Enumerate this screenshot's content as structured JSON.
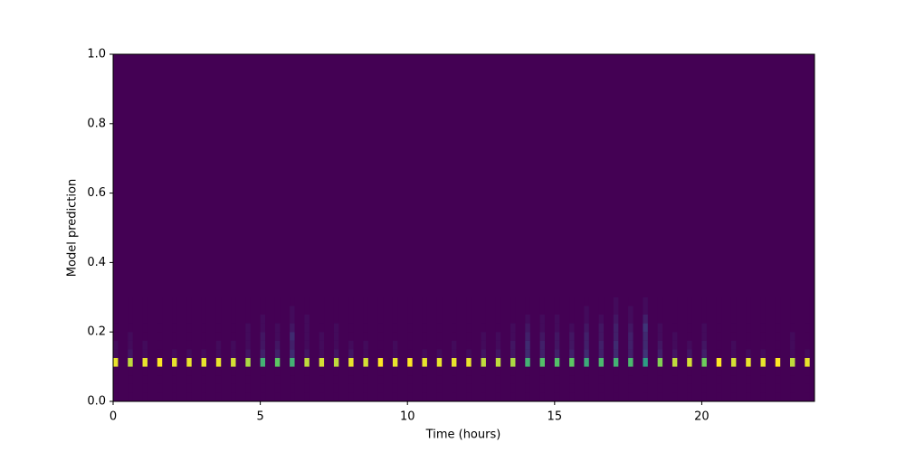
{
  "chart_data": {
    "type": "heatmap",
    "colormap": "viridis",
    "xlabel": "Time (hours)",
    "ylabel": "Model prediction",
    "xlim": [
      0,
      23.83
    ],
    "ylim": [
      0,
      1
    ],
    "xticks": [
      0,
      5,
      10,
      15,
      20
    ],
    "yticks": [
      {
        "value": 0,
        "label": "0.0"
      },
      {
        "value": 0.2,
        "label": "0.2"
      },
      {
        "value": 0.4,
        "label": "0.4"
      },
      {
        "value": 0.6,
        "label": "0.6"
      },
      {
        "value": 0.8,
        "label": "0.8"
      },
      {
        "value": 1,
        "label": "1.0"
      }
    ],
    "bin_width": 0.1667,
    "x": [
      0,
      0.5,
      1,
      1.5,
      2,
      2.5,
      3,
      3.5,
      4,
      4.5,
      5,
      5.5,
      6,
      6.5,
      7,
      7.5,
      8,
      8.5,
      9,
      9.5,
      10,
      10.5,
      11,
      11.5,
      12,
      12.5,
      13,
      13.5,
      14,
      14.5,
      15,
      15.5,
      16,
      16.5,
      17,
      17.5,
      18,
      18.5,
      19,
      19.5,
      20,
      20.5,
      21,
      21.5,
      22,
      22.5,
      23,
      23.5
    ],
    "ybins": [
      0,
      0.025,
      0.05,
      0.075,
      0.1,
      0.125,
      0.15,
      0.175,
      0.2,
      0.225,
      0.25,
      0.275,
      0.3
    ],
    "z": [
      [
        0,
        0,
        0,
        0,
        30,
        1,
        1,
        0,
        0,
        0,
        0,
        0
      ],
      [
        0,
        0,
        0,
        0,
        28,
        2,
        1,
        1,
        0,
        0,
        0,
        0
      ],
      [
        0,
        0,
        0,
        0,
        30,
        1,
        1,
        0,
        0,
        0,
        0,
        0
      ],
      [
        0,
        0,
        0,
        0,
        31,
        0,
        0,
        0,
        0,
        0,
        0,
        0
      ],
      [
        0,
        0,
        0,
        0,
        30,
        1,
        0,
        0,
        0,
        0,
        0,
        0
      ],
      [
        0,
        0,
        0,
        0,
        30,
        1,
        0,
        0,
        0,
        0,
        0,
        0
      ],
      [
        0,
        0,
        0,
        0,
        30,
        1,
        0,
        0,
        0,
        0,
        0,
        0
      ],
      [
        0,
        0,
        0,
        0,
        30,
        1,
        1,
        0,
        0,
        0,
        0,
        0
      ],
      [
        0,
        0,
        0,
        0,
        29,
        1,
        1,
        0,
        0,
        0,
        0,
        0
      ],
      [
        0,
        0,
        0,
        0,
        27,
        2,
        1,
        1,
        1,
        0,
        0,
        0
      ],
      [
        0,
        0,
        0,
        0,
        20,
        3,
        2,
        2,
        1,
        1,
        0,
        0
      ],
      [
        0,
        0,
        0,
        0,
        23,
        3,
        2,
        1,
        1,
        0,
        0,
        0
      ],
      [
        0,
        0,
        0,
        0,
        20,
        4,
        3,
        4,
        2,
        1,
        1,
        0
      ],
      [
        0,
        0,
        0,
        0,
        28,
        2,
        1,
        1,
        1,
        1,
        0,
        0
      ],
      [
        0,
        0,
        0,
        0,
        29,
        1,
        1,
        1,
        0,
        0,
        0,
        0
      ],
      [
        0,
        0,
        0,
        0,
        28,
        2,
        1,
        1,
        1,
        0,
        0,
        0
      ],
      [
        0,
        0,
        0,
        0,
        30,
        2,
        1,
        0,
        0,
        0,
        0,
        0
      ],
      [
        0,
        0,
        0,
        0,
        29,
        1,
        1,
        0,
        0,
        0,
        0,
        0
      ],
      [
        0,
        0,
        0,
        0,
        31,
        0,
        0,
        0,
        0,
        0,
        0,
        0
      ],
      [
        0,
        0,
        0,
        0,
        30,
        1,
        1,
        0,
        0,
        0,
        0,
        0
      ],
      [
        0,
        0,
        0,
        0,
        31,
        0,
        0,
        0,
        0,
        0,
        0,
        0
      ],
      [
        0,
        0,
        0,
        0,
        30,
        1,
        0,
        0,
        0,
        0,
        0,
        0
      ],
      [
        0,
        0,
        0,
        0,
        30,
        1,
        0,
        0,
        0,
        0,
        0,
        0
      ],
      [
        0,
        0,
        0,
        0,
        30,
        1,
        1,
        0,
        0,
        0,
        0,
        0
      ],
      [
        0,
        0,
        0,
        0,
        30,
        1,
        0,
        0,
        0,
        0,
        0,
        0
      ],
      [
        0,
        0,
        0,
        0,
        28,
        2,
        1,
        1,
        0,
        0,
        0,
        0
      ],
      [
        0,
        0,
        0,
        0,
        28,
        2,
        1,
        1,
        0,
        0,
        0,
        0
      ],
      [
        0,
        0,
        0,
        0,
        27,
        2,
        2,
        1,
        1,
        0,
        0,
        0
      ],
      [
        0,
        0,
        0,
        0,
        20,
        4,
        4,
        3,
        2,
        1,
        0,
        0
      ],
      [
        0,
        0,
        0,
        0,
        22,
        3,
        3,
        2,
        1,
        1,
        0,
        0
      ],
      [
        0,
        0,
        0,
        0,
        22,
        3,
        2,
        2,
        1,
        1,
        0,
        0
      ],
      [
        0,
        0,
        0,
        0,
        23,
        3,
        2,
        2,
        1,
        0,
        0,
        0
      ],
      [
        0,
        0,
        0,
        0,
        19,
        4,
        3,
        3,
        2,
        1,
        1,
        0
      ],
      [
        0,
        0,
        0,
        0,
        21,
        3,
        3,
        2,
        2,
        1,
        0,
        0
      ],
      [
        0,
        0,
        0,
        0,
        20,
        4,
        4,
        3,
        3,
        2,
        1,
        1
      ],
      [
        0,
        0,
        0,
        0,
        21,
        3,
        3,
        3,
        2,
        1,
        1,
        0
      ],
      [
        0,
        0,
        0,
        0,
        17,
        5,
        4,
        4,
        5,
        3,
        1,
        1
      ],
      [
        0,
        0,
        0,
        0,
        25,
        3,
        2,
        1,
        1,
        0,
        0,
        0
      ],
      [
        0,
        0,
        0,
        0,
        28,
        2,
        1,
        1,
        0,
        0,
        0,
        0
      ],
      [
        0,
        0,
        0,
        0,
        29,
        2,
        1,
        0,
        0,
        0,
        0,
        0
      ],
      [
        0,
        0,
        0,
        0,
        24,
        3,
        2,
        1,
        1,
        0,
        0,
        0
      ],
      [
        0,
        0,
        0,
        0,
        31,
        0,
        0,
        0,
        0,
        0,
        0,
        0
      ],
      [
        0,
        0,
        0,
        0,
        29,
        1,
        1,
        0,
        0,
        0,
        0,
        0
      ],
      [
        0,
        0,
        0,
        0,
        30,
        1,
        0,
        0,
        0,
        0,
        0,
        0
      ],
      [
        0,
        0,
        0,
        0,
        30,
        1,
        0,
        0,
        0,
        0,
        0,
        0
      ],
      [
        0,
        0,
        0,
        0,
        31,
        0,
        0,
        0,
        0,
        0,
        0,
        0
      ],
      [
        0,
        0,
        0,
        0,
        28,
        1,
        1,
        1,
        0,
        0,
        0,
        0
      ],
      [
        0,
        0,
        0,
        0,
        30,
        1,
        0,
        0,
        0,
        0,
        0,
        0
      ]
    ]
  }
}
